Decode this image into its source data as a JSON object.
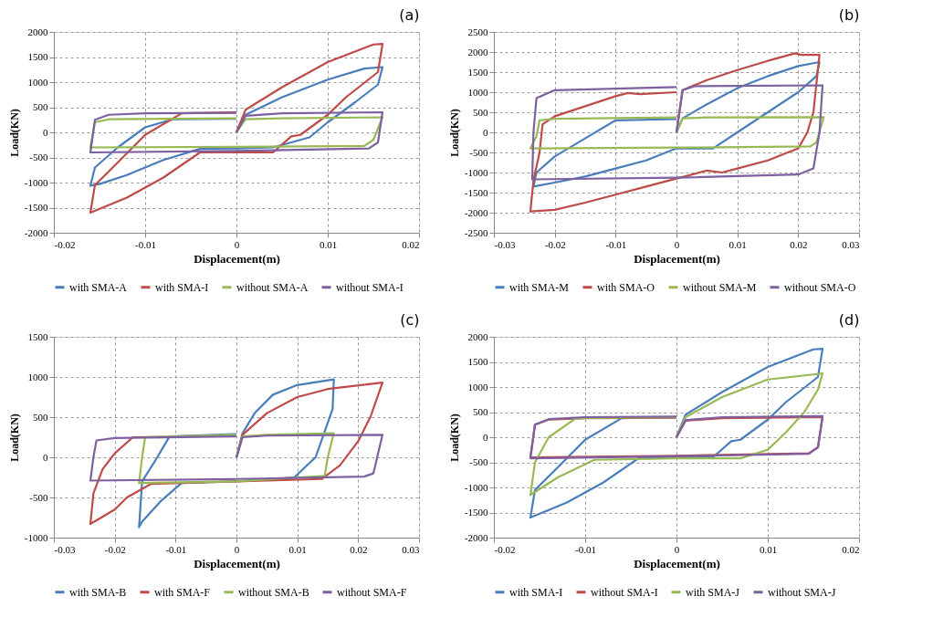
{
  "chart_data": [
    {
      "type": "line",
      "title": "(a)",
      "xlabel": "Displacement(m)",
      "ylabel": "Load(KN)",
      "xlim": [
        -0.02,
        0.02
      ],
      "ylim": [
        -2000,
        2000
      ],
      "xticks": [
        -0.02,
        -0.01,
        0,
        0.01,
        0.02
      ],
      "yticks": [
        -2000,
        -1500,
        -1000,
        -500,
        0,
        500,
        1000,
        1500,
        2000
      ],
      "grid": true,
      "legend": "bottom",
      "series": [
        {
          "name": "with SMA-A",
          "color": "#4a7ebb",
          "x": [
            0,
            0.001,
            0.005,
            0.01,
            0.014,
            0.016,
            0.0155,
            0.013,
            0.01,
            0.008,
            0.004,
            0,
            -0.004,
            -0.008,
            -0.012,
            -0.015,
            -0.016,
            -0.0155,
            -0.013,
            -0.01,
            -0.007,
            0
          ],
          "values": [
            0,
            350,
            700,
            1050,
            1270,
            1300,
            950,
            600,
            200,
            -100,
            -300,
            -320,
            -330,
            -550,
            -850,
            -1030,
            -1060,
            -700,
            -300,
            100,
            260,
            270
          ]
        },
        {
          "name": "with SMA-I",
          "color": "#be4b48",
          "x": [
            0,
            0.001,
            0.005,
            0.01,
            0.015,
            0.016,
            0.0155,
            0.012,
            0.01,
            0.007,
            0.006,
            0.004,
            0,
            -0.004,
            -0.008,
            -0.012,
            -0.016,
            -0.0155,
            -0.013,
            -0.01,
            -0.006,
            0
          ],
          "values": [
            0,
            450,
            900,
            1400,
            1750,
            1760,
            1200,
            700,
            350,
            -50,
            -80,
            -400,
            -400,
            -400,
            -900,
            -1300,
            -1600,
            -1050,
            -600,
            -50,
            380,
            400
          ]
        },
        {
          "name": "without SMA-A",
          "color": "#98b954",
          "x": [
            0,
            0.001,
            0.005,
            0.016,
            0.015,
            0.014,
            0,
            -0.016,
            -0.0155,
            -0.014,
            0
          ],
          "values": [
            0,
            260,
            280,
            300,
            -150,
            -270,
            -290,
            -300,
            200,
            260,
            280
          ]
        },
        {
          "name": "without SMA-I",
          "color": "#7d60a0",
          "x": [
            0,
            0.001,
            0.005,
            0.016,
            0.0155,
            0.0145,
            0,
            -0.016,
            -0.0155,
            -0.014,
            -0.01,
            0
          ],
          "values": [
            0,
            330,
            380,
            400,
            -200,
            -320,
            -370,
            -400,
            250,
            350,
            380,
            390
          ]
        }
      ]
    },
    {
      "type": "line",
      "title": "(b)",
      "xlabel": "Displacement(m)",
      "ylabel": "Load(KN)",
      "xlim": [
        -0.03,
        0.03
      ],
      "ylim": [
        -2500,
        2500
      ],
      "xticks": [
        -0.03,
        -0.02,
        -0.01,
        0,
        0.01,
        0.02,
        0.03
      ],
      "yticks": [
        -2500,
        -2000,
        -1500,
        -1000,
        -500,
        0,
        500,
        1000,
        1500,
        2000,
        2500
      ],
      "grid": true,
      "legend": "bottom",
      "series": [
        {
          "name": "with SMA-M",
          "color": "#4a7ebb",
          "x": [
            0,
            0.001,
            0.005,
            0.01,
            0.015,
            0.02,
            0.0235,
            0.023,
            0.02,
            0.015,
            0.01,
            0.006,
            0,
            -0.005,
            -0.01,
            -0.015,
            -0.02,
            -0.0235,
            -0.023,
            -0.02,
            -0.015,
            -0.01,
            0
          ],
          "values": [
            0,
            350,
            700,
            1100,
            1400,
            1650,
            1750,
            1400,
            1000,
            500,
            0,
            -400,
            -400,
            -700,
            -900,
            -1100,
            -1250,
            -1350,
            -1000,
            -600,
            -150,
            300,
            330
          ]
        },
        {
          "name": "with SMA-O",
          "color": "#be4b48",
          "x": [
            0,
            0.001,
            0.005,
            0.01,
            0.015,
            0.0195,
            0.0205,
            0.0235,
            0.0225,
            0.0215,
            0.02,
            0.015,
            0.01,
            0.0075,
            0.005,
            0,
            -0.005,
            -0.01,
            -0.015,
            -0.02,
            -0.024,
            -0.0235,
            -0.0225,
            -0.022,
            -0.02,
            -0.015,
            -0.01,
            -0.008,
            -0.006,
            0
          ],
          "values": [
            0,
            1050,
            1300,
            1550,
            1780,
            1970,
            1930,
            1930,
            500,
            0,
            -400,
            -700,
            -900,
            -1000,
            -950,
            -1150,
            -1350,
            -1550,
            -1750,
            -1930,
            -1970,
            -1200,
            -500,
            200,
            400,
            650,
            900,
            980,
            950,
            1000
          ]
        },
        {
          "name": "without SMA-M",
          "color": "#98b954",
          "x": [
            0,
            0.001,
            0.005,
            0.0242,
            0.023,
            0.022,
            0,
            -0.024,
            -0.023,
            -0.0225,
            -0.02,
            0
          ],
          "values": [
            0,
            350,
            370,
            380,
            -250,
            -350,
            -380,
            -400,
            -100,
            300,
            340,
            370
          ]
        },
        {
          "name": "without SMA-O",
          "color": "#7d60a0",
          "x": [
            0,
            0.001,
            0.003,
            0.024,
            0.0235,
            0.0225,
            0.02,
            0,
            -0.0237,
            -0.0235,
            -0.023,
            -0.02,
            0
          ],
          "values": [
            0,
            1050,
            1150,
            1170,
            0,
            -900,
            -1050,
            -1130,
            -1170,
            0,
            850,
            1050,
            1130
          ]
        }
      ]
    },
    {
      "type": "line",
      "title": "(c)",
      "xlabel": "Displacement(m)",
      "ylabel": "Load(KN)",
      "xlim": [
        -0.03,
        0.03
      ],
      "ylim": [
        -1000,
        1500
      ],
      "xticks": [
        -0.03,
        -0.02,
        -0.01,
        0,
        0.01,
        0.02,
        0.03
      ],
      "yticks": [
        -1000,
        -500,
        0,
        500,
        1000,
        1500
      ],
      "grid": true,
      "legend": "bottom",
      "series": [
        {
          "name": "with SMA-B",
          "color": "#4a7ebb",
          "x": [
            0,
            0.001,
            0.003,
            0.006,
            0.01,
            0.016,
            0.0158,
            0.013,
            0.0095,
            0,
            -0.009,
            -0.0125,
            -0.0155,
            -0.016,
            -0.0155,
            -0.013,
            -0.011,
            0
          ],
          "values": [
            0,
            300,
            550,
            780,
            900,
            970,
            600,
            0,
            -250,
            -300,
            -320,
            -550,
            -800,
            -870,
            -300,
            0,
            260,
            290
          ]
        },
        {
          "name": "with SMA-F",
          "color": "#be4b48",
          "x": [
            0,
            0.001,
            0.005,
            0.01,
            0.015,
            0.024,
            0.022,
            0.02,
            0.017,
            0.014,
            0,
            -0.014,
            -0.018,
            -0.02,
            -0.024,
            -0.0235,
            -0.022,
            -0.02,
            -0.017,
            0
          ],
          "values": [
            0,
            280,
            550,
            750,
            850,
            930,
            500,
            200,
            -100,
            -270,
            -300,
            -330,
            -500,
            -650,
            -830,
            -450,
            -150,
            50,
            250,
            270
          ]
        },
        {
          "name": "without SMA-B",
          "color": "#98b954",
          "x": [
            0,
            0.001,
            0.005,
            0.016,
            0.015,
            0.0145,
            0,
            -0.016,
            -0.0155,
            -0.015,
            0
          ],
          "values": [
            0,
            260,
            280,
            300,
            0,
            -230,
            -300,
            -320,
            0,
            250,
            280
          ]
        },
        {
          "name": "without SMA-F",
          "color": "#7d60a0",
          "x": [
            0,
            0.001,
            0.005,
            0.024,
            0.0225,
            0.021,
            0,
            -0.024,
            -0.0235,
            -0.023,
            -0.02,
            0
          ],
          "values": [
            0,
            250,
            270,
            280,
            -200,
            -240,
            -270,
            -290,
            0,
            210,
            240,
            260
          ]
        }
      ]
    },
    {
      "type": "line",
      "title": "(d)",
      "xlabel": "Displacement(m)",
      "ylabel": "Load(KN)",
      "xlim": [
        -0.02,
        0.02
      ],
      "ylim": [
        -2000,
        2000
      ],
      "xticks": [
        -0.02,
        -0.01,
        0,
        0.01,
        0.02
      ],
      "yticks": [
        -2000,
        -1500,
        -1000,
        -500,
        0,
        500,
        1000,
        1500,
        2000
      ],
      "grid": true,
      "legend": "bottom",
      "series": [
        {
          "name": "with SMA-I",
          "color": "#4a7ebb",
          "x": [
            0,
            0.001,
            0.005,
            0.01,
            0.015,
            0.016,
            0.0155,
            0.012,
            0.01,
            0.007,
            0.006,
            0.004,
            0,
            -0.004,
            -0.008,
            -0.012,
            -0.016,
            -0.0155,
            -0.013,
            -0.01,
            -0.006,
            0
          ],
          "values": [
            0,
            450,
            900,
            1400,
            1750,
            1760,
            1200,
            700,
            350,
            -50,
            -80,
            -400,
            -400,
            -400,
            -900,
            -1300,
            -1600,
            -1050,
            -600,
            -50,
            380,
            400
          ]
        },
        {
          "name": "without SMA-I",
          "color": "#be4b48",
          "x": [
            0,
            0.001,
            0.005,
            0.016,
            0.0155,
            0.0145,
            0,
            -0.016,
            -0.0155,
            -0.014,
            -0.01,
            0
          ],
          "values": [
            0,
            330,
            380,
            400,
            -200,
            -320,
            -370,
            -400,
            250,
            350,
            380,
            390
          ]
        },
        {
          "name": "with SMA-J",
          "color": "#98b954",
          "x": [
            0,
            0.001,
            0.005,
            0.01,
            0.015,
            0.016,
            0.0155,
            0.014,
            0.012,
            0.01,
            0.007,
            0,
            -0.009,
            -0.013,
            -0.016,
            -0.0155,
            -0.014,
            -0.011,
            0
          ],
          "values": [
            0,
            400,
            800,
            1150,
            1250,
            1270,
            950,
            500,
            100,
            -250,
            -420,
            -420,
            -450,
            -800,
            -1150,
            -500,
            0,
            380,
            400
          ]
        },
        {
          "name": "without SMA-J",
          "color": "#7d60a0",
          "x": [
            0,
            0.001,
            0.005,
            0.016,
            0.0155,
            0.0145,
            0,
            -0.016,
            -0.0155,
            -0.014,
            -0.01,
            0
          ],
          "values": [
            0,
            340,
            400,
            420,
            -200,
            -330,
            -380,
            -420,
            250,
            360,
            400,
            410
          ]
        }
      ]
    }
  ]
}
